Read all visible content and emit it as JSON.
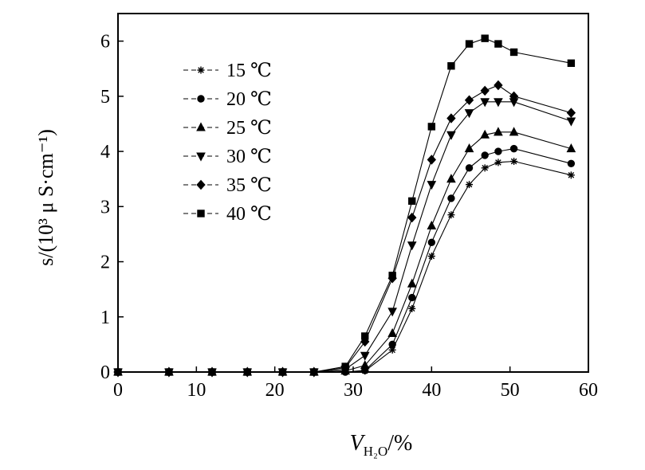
{
  "chart_data": {
    "type": "line",
    "xlabel": {
      "main": "V",
      "sub": "H₂O",
      "unit": "/%"
    },
    "ylabel": "s/(10³ μ S·cm⁻¹)",
    "xlim": [
      0,
      60
    ],
    "ylim": [
      0,
      6.5
    ],
    "xticks": [
      0,
      10,
      20,
      30,
      40,
      50,
      60
    ],
    "yticks": [
      0,
      1,
      2,
      3,
      4,
      5,
      6
    ],
    "xtick_labels": [
      "0",
      "10",
      "20",
      "30",
      "40",
      "50",
      "60"
    ],
    "ytick_labels": [
      "0",
      "1",
      "2",
      "3",
      "4",
      "5",
      "6"
    ],
    "grid": false,
    "legend_position": "top-left",
    "x": [
      0,
      6.5,
      12,
      16.5,
      21,
      25,
      29,
      31.5,
      35,
      37.5,
      40,
      42.5,
      44.8,
      46.8,
      48.5,
      50.5,
      57.8
    ],
    "series": [
      {
        "name": "15 ℃",
        "marker": "star",
        "values": [
          0,
          0,
          0,
          0,
          0,
          0,
          0,
          0.02,
          0.4,
          1.15,
          2.1,
          2.85,
          3.4,
          3.7,
          3.8,
          3.82,
          3.57
        ]
      },
      {
        "name": "20 ℃",
        "marker": "circle",
        "values": [
          0,
          0,
          0,
          0,
          0,
          0,
          0,
          0.03,
          0.5,
          1.35,
          2.35,
          3.15,
          3.7,
          3.93,
          4.0,
          4.05,
          3.78
        ]
      },
      {
        "name": "25 ℃",
        "marker": "triangle-up",
        "values": [
          0,
          0,
          0,
          0,
          0,
          0,
          0.02,
          0.12,
          0.7,
          1.6,
          2.65,
          3.5,
          4.05,
          4.3,
          4.35,
          4.35,
          4.05
        ]
      },
      {
        "name": "30 ℃",
        "marker": "triangle-down",
        "values": [
          0,
          0,
          0,
          0,
          0,
          0,
          0.05,
          0.3,
          1.1,
          2.3,
          3.4,
          4.3,
          4.7,
          4.9,
          4.9,
          4.9,
          4.55
        ]
      },
      {
        "name": "35 ℃",
        "marker": "diamond",
        "values": [
          0,
          0,
          0,
          0,
          0,
          0,
          0.08,
          0.55,
          1.7,
          2.8,
          3.85,
          4.6,
          4.93,
          5.1,
          5.2,
          5.0,
          4.7
        ]
      },
      {
        "name": "40 ℃",
        "marker": "square",
        "values": [
          0,
          0,
          0,
          0,
          0,
          0,
          0.1,
          0.65,
          1.75,
          3.1,
          4.45,
          5.55,
          5.95,
          6.05,
          5.95,
          5.8,
          5.6
        ]
      }
    ]
  }
}
